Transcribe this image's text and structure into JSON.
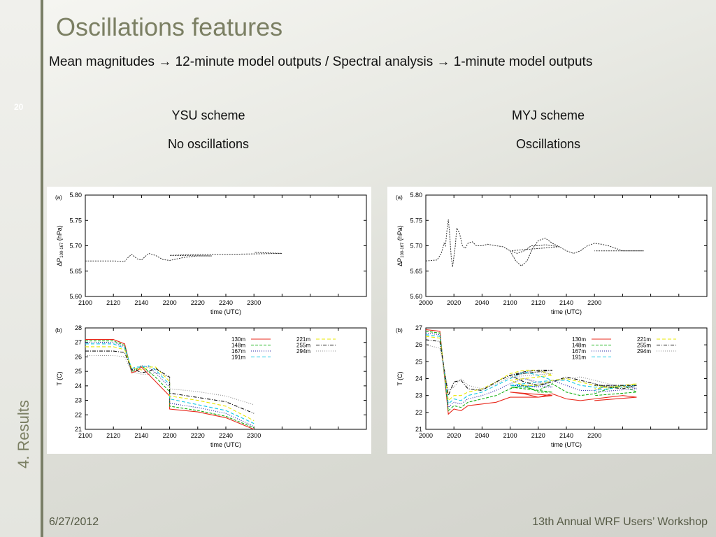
{
  "slide": {
    "title": "Oscillations features",
    "subtitle_part1": "Mean magnitudes",
    "subtitle_part2": "12-minute model outputs / Spectral analysis",
    "subtitle_part3": "1-minute model outputs",
    "number": "20",
    "section": "4. Results",
    "date": "6/27/2012",
    "event": "13th Annual WRF Users’ Workshop",
    "left_scheme": "YSU scheme",
    "left_note": "No oscillations",
    "right_scheme": "MYJ scheme",
    "right_note": "Oscillations"
  },
  "colors": {
    "title": "#7b7f63",
    "series": [
      "#e8291c",
      "#18b218",
      "#1a1aa0",
      "#10c8e6",
      "#e8e800",
      "#101010",
      "#909090"
    ]
  },
  "chart_data": [
    {
      "type": "line",
      "panel": "(a)",
      "xlabel": "time (UTC)",
      "ylabel_main": "ΔP",
      "ylabel_sub": "100-167",
      "ylabel_unit": "(hPa)",
      "xlim": [
        2100,
        2300
      ],
      "ylim": [
        5.6,
        5.8
      ],
      "xticks": [
        2100,
        2120,
        2140,
        2160,
        2180,
        2200,
        2220,
        2240,
        2260,
        2280,
        2300
      ],
      "xticklabels": [
        "2100",
        "2120",
        "2140",
        "2200",
        "2220",
        "2240",
        "2300"
      ],
      "yticks": [
        5.6,
        5.65,
        5.7,
        5.75,
        5.8
      ],
      "yticklabels": [
        "5.60",
        "5.65",
        "5.70",
        "5.75",
        "5.80"
      ],
      "series": [
        {
          "x": [
            2100,
            2110,
            2120,
            2128,
            2130,
            2133,
            2137,
            2140,
            2145,
            2150,
            2155,
            2160,
            2170,
            2180,
            2190,
            2200,
            2210,
            2220,
            2240,
            2260,
            2280,
            2300
          ],
          "y": [
            5.67,
            5.67,
            5.67,
            5.669,
            5.676,
            5.683,
            5.674,
            5.672,
            5.685,
            5.681,
            5.673,
            5.671,
            5.677,
            5.68,
            5.68,
            5.681,
            5.682,
            5.683,
            5.683,
            5.684,
            5.685,
            5.687
          ]
        }
      ]
    },
    {
      "type": "line",
      "panel": "(b)",
      "xlabel": "time (UTC)",
      "ylabel": "T (C)",
      "xlim": [
        2100,
        2300
      ],
      "ylim": [
        21,
        28
      ],
      "xticks": [
        2100,
        2120,
        2140,
        2160,
        2180,
        2200,
        2220,
        2240,
        2260,
        2280,
        2300
      ],
      "xticklabels": [
        "2100",
        "2120",
        "2140",
        "2200",
        "2220",
        "2240",
        "2300"
      ],
      "yticks": [
        21,
        22,
        23,
        24,
        25,
        26,
        27,
        28
      ],
      "yticklabels": [
        "21",
        "22",
        "23",
        "24",
        "25",
        "26",
        "27",
        "28"
      ],
      "legend": [
        "130m",
        "148m",
        "167m",
        "191m",
        "221m",
        "255m",
        "294m"
      ],
      "x": [
        2100,
        2120,
        2128,
        2133,
        2136,
        2140,
        2145,
        2150,
        2160,
        2200,
        2220,
        2240,
        2300
      ],
      "series": [
        {
          "name": "130m",
          "values": [
            27.2,
            27.2,
            26.9,
            24.9,
            25.0,
            25.3,
            24.8,
            24.3,
            23.3,
            22.4,
            22.2,
            21.8,
            21.0
          ]
        },
        {
          "name": "148m",
          "values": [
            27.1,
            27.1,
            26.8,
            25.0,
            25.1,
            25.4,
            25.0,
            24.6,
            23.6,
            22.6,
            22.3,
            21.9,
            21.1
          ]
        },
        {
          "name": "167m",
          "values": [
            27.0,
            27.0,
            26.7,
            25.1,
            25.2,
            25.4,
            25.3,
            24.9,
            23.9,
            22.8,
            22.5,
            22.1,
            21.2
          ]
        },
        {
          "name": "191m",
          "values": [
            26.9,
            26.9,
            26.6,
            25.2,
            25.3,
            25.3,
            25.4,
            25.1,
            24.1,
            23.1,
            22.7,
            22.3,
            21.4
          ]
        },
        {
          "name": "221m",
          "values": [
            26.7,
            26.7,
            26.5,
            25.2,
            25.2,
            25.1,
            25.3,
            25.3,
            24.3,
            23.3,
            23.0,
            22.6,
            21.6
          ]
        },
        {
          "name": "255m",
          "values": [
            26.4,
            26.4,
            26.3,
            25.1,
            25.1,
            24.9,
            25.0,
            25.2,
            24.6,
            23.5,
            23.2,
            22.9,
            22.1
          ]
        },
        {
          "name": "294m",
          "values": [
            26.1,
            26.1,
            26.0,
            25.0,
            24.9,
            24.8,
            24.8,
            24.9,
            24.6,
            23.8,
            23.6,
            23.3,
            22.7
          ]
        }
      ]
    },
    {
      "type": "line",
      "panel": "(a)",
      "xlabel": "time (UTC)",
      "ylabel_main": "ΔP",
      "ylabel_sub": "100-167",
      "ylabel_unit": "(hPa)",
      "xlim": [
        2000,
        2200
      ],
      "ylim": [
        5.6,
        5.8
      ],
      "xticks": [
        2000,
        2020,
        2040,
        2060,
        2080,
        2100,
        2120,
        2140,
        2160,
        2180,
        2200
      ],
      "xticklabels": [
        "2000",
        "2020",
        "2040",
        "2100",
        "2120",
        "2140",
        "2200"
      ],
      "yticks": [
        5.6,
        5.65,
        5.7,
        5.75,
        5.8
      ],
      "yticklabels": [
        "5.60",
        "5.65",
        "5.70",
        "5.75",
        "5.80"
      ],
      "series": [
        {
          "x": [
            2000,
            2008,
            2011,
            2013,
            2014,
            2015,
            2016,
            2017,
            2018,
            2019,
            2021,
            2022,
            2024,
            2026,
            2028,
            2030,
            2033,
            2036,
            2040,
            2044,
            2050,
            2055,
            2060,
            2064,
            2068,
            2072,
            2076,
            2080,
            2085,
            2090,
            2095,
            2100,
            2105,
            2110,
            2115,
            2120,
            2125,
            2130,
            2135,
            2140,
            2145,
            2150,
            2155,
            2160,
            2165,
            2170,
            2175,
            2180,
            2185,
            2190,
            2195,
            2200
          ],
          "y": [
            5.67,
            5.672,
            5.685,
            5.705,
            5.7,
            5.73,
            5.752,
            5.72,
            5.68,
            5.658,
            5.7,
            5.735,
            5.725,
            5.7,
            5.695,
            5.705,
            5.708,
            5.7,
            5.7,
            5.703,
            5.7,
            5.698,
            5.69,
            5.67,
            5.66,
            5.67,
            5.695,
            5.71,
            5.715,
            5.705,
            5.698,
            5.69,
            5.685,
            5.69,
            5.7,
            5.7,
            5.702,
            5.7,
            5.698,
            5.69,
            5.685,
            5.69,
            5.7,
            5.705,
            5.703,
            5.7,
            5.695,
            5.69,
            5.69,
            5.69,
            5.69,
            5.69
          ]
        }
      ]
    },
    {
      "type": "line",
      "panel": "(b)",
      "xlabel": "time (UTC)",
      "ylabel": "T (C)",
      "xlim": [
        2000,
        2200
      ],
      "ylim": [
        21,
        27
      ],
      "xticks": [
        2000,
        2020,
        2040,
        2060,
        2080,
        2100,
        2120,
        2140,
        2160,
        2180,
        2200
      ],
      "xticklabels": [
        "2000",
        "2020",
        "2040",
        "2100",
        "2120",
        "2140",
        "2200"
      ],
      "yticks": [
        21,
        22,
        23,
        24,
        25,
        26,
        27
      ],
      "yticklabels": [
        "21",
        "22",
        "23",
        "24",
        "25",
        "26",
        "27"
      ],
      "legend": [
        "130m",
        "148m",
        "167m",
        "191m",
        "221m",
        "255m",
        "294m"
      ],
      "x": [
        2000,
        2010,
        2016,
        2020,
        2025,
        2030,
        2040,
        2050,
        2060,
        2070,
        2080,
        2090,
        2100,
        2110,
        2120,
        2130,
        2140,
        2150,
        2160,
        2170,
        2180,
        2190,
        2200
      ],
      "series": [
        {
          "name": "130m",
          "values": [
            26.9,
            26.8,
            21.9,
            22.2,
            22.1,
            22.4,
            22.5,
            22.6,
            22.9,
            22.9,
            22.9,
            23.0,
            23.2,
            23.1,
            22.9,
            23.1,
            22.8,
            22.7,
            22.8,
            22.9,
            23.0,
            22.9,
            22.7
          ]
        },
        {
          "name": "148m",
          "values": [
            26.8,
            26.7,
            22.1,
            22.4,
            22.3,
            22.6,
            22.8,
            23.0,
            23.4,
            23.6,
            23.2,
            23.2,
            23.5,
            23.5,
            23.3,
            23.7,
            23.2,
            23.0,
            23.1,
            23.4,
            23.6,
            23.2,
            23.0
          ]
        },
        {
          "name": "167m",
          "values": [
            26.7,
            26.6,
            22.3,
            22.6,
            22.5,
            22.8,
            23.0,
            23.3,
            23.7,
            24.0,
            23.8,
            23.5,
            23.6,
            23.6,
            23.5,
            23.9,
            23.6,
            23.3,
            23.3,
            23.6,
            23.6,
            23.4,
            23.2
          ]
        },
        {
          "name": "191m",
          "values": [
            26.6,
            26.5,
            22.5,
            22.8,
            22.7,
            23.0,
            23.2,
            23.6,
            24.0,
            24.4,
            24.2,
            23.9,
            23.6,
            23.5,
            23.6,
            23.9,
            23.9,
            23.6,
            23.5,
            23.5,
            23.6,
            23.6,
            23.3
          ]
        },
        {
          "name": "221m",
          "values": [
            26.5,
            26.4,
            22.7,
            23.0,
            23.0,
            23.2,
            23.4,
            23.8,
            24.3,
            24.5,
            24.5,
            24.2,
            23.9,
            23.6,
            23.6,
            23.9,
            24.0,
            23.8,
            23.6,
            23.5,
            23.5,
            23.7,
            23.4
          ]
        },
        {
          "name": "255m",
          "values": [
            26.3,
            26.2,
            23.0,
            23.8,
            23.9,
            23.4,
            23.3,
            23.8,
            24.2,
            24.4,
            24.5,
            24.5,
            24.2,
            23.8,
            23.6,
            23.8,
            24.1,
            23.9,
            23.7,
            23.5,
            23.4,
            23.6,
            23.6
          ]
        },
        {
          "name": "294m",
          "values": [
            26.0,
            25.8,
            23.3,
            23.5,
            24.0,
            23.6,
            23.4,
            23.7,
            24.1,
            24.3,
            24.4,
            24.3,
            24.1,
            24.0,
            23.7,
            23.8,
            24.0,
            24.1,
            23.9,
            23.7,
            23.5,
            23.5,
            23.6
          ]
        }
      ]
    }
  ]
}
